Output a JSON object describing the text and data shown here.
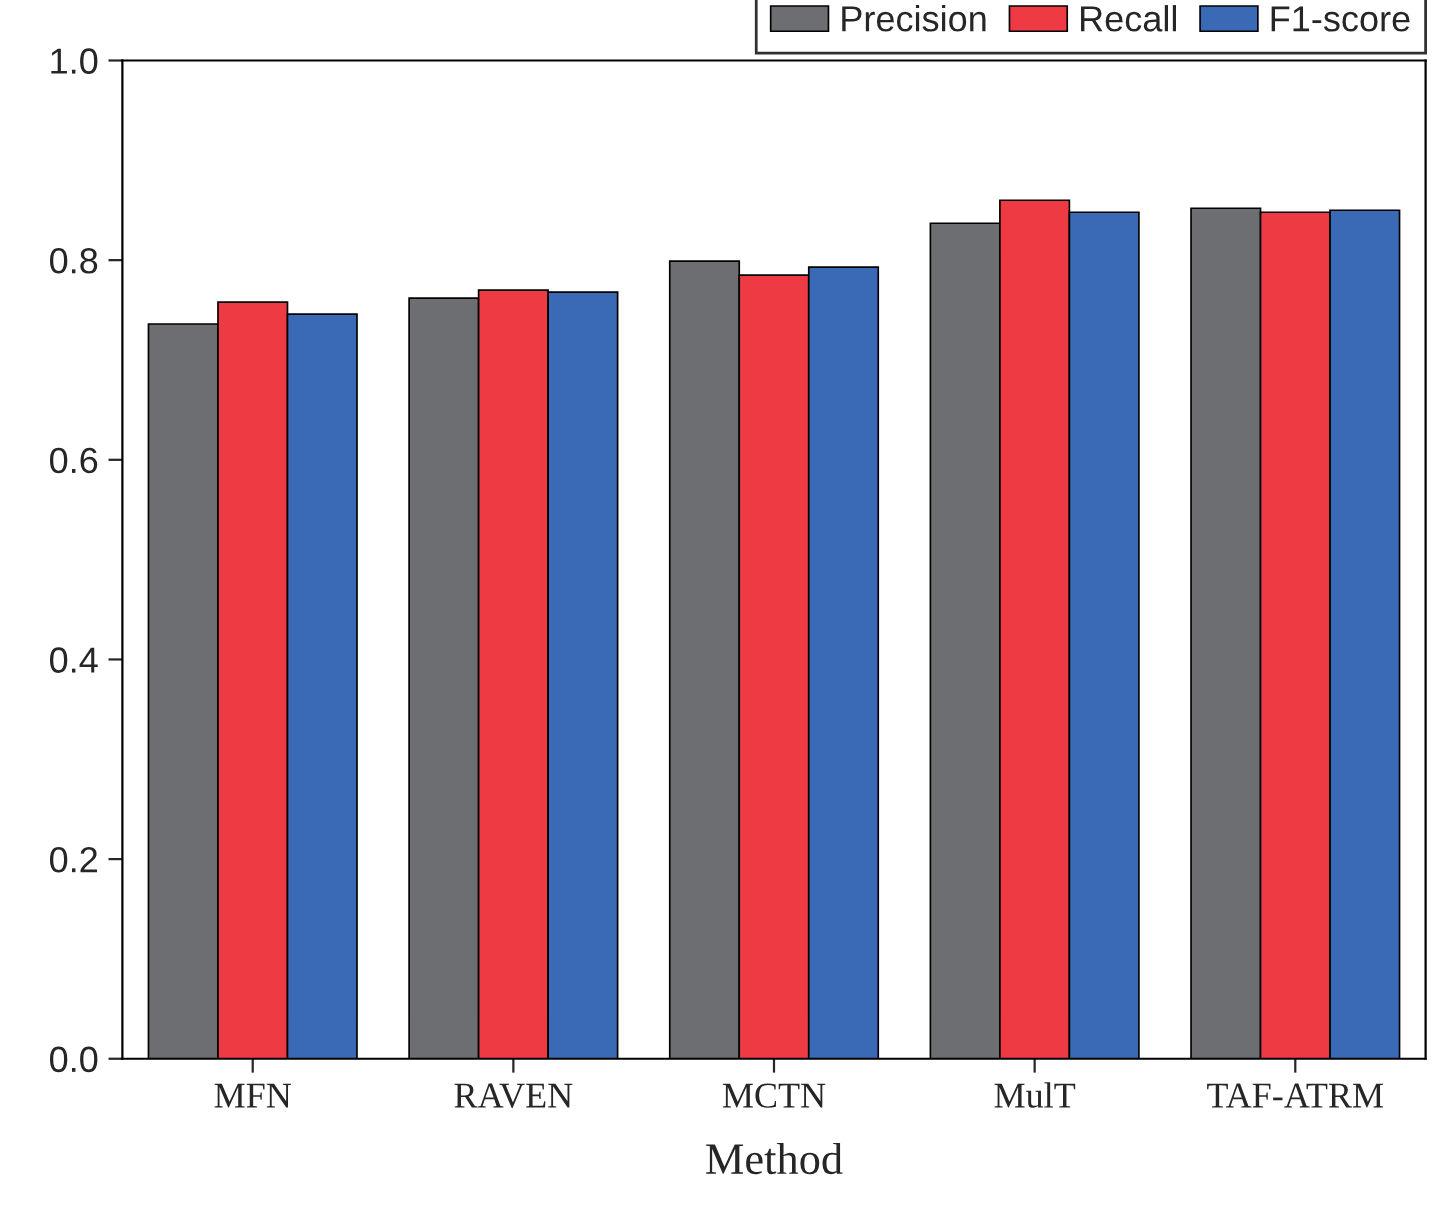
{
  "chart_data": {
    "type": "bar",
    "xlabel": "Method",
    "categories": [
      "MFN",
      "RAVEN",
      "MCTN",
      "MulT",
      "TAF-ATRM"
    ],
    "series": [
      {
        "name": "Precision",
        "color": "#6d6e71",
        "values": [
          0.736,
          0.762,
          0.799,
          0.837,
          0.852
        ]
      },
      {
        "name": "Recall",
        "color": "#ee3a43",
        "values": [
          0.758,
          0.77,
          0.785,
          0.86,
          0.848
        ]
      },
      {
        "name": "F1-score",
        "color": "#3a6ab5",
        "values": [
          0.746,
          0.768,
          0.793,
          0.848,
          0.85
        ]
      }
    ],
    "ylim": [
      0,
      1.0
    ],
    "yticks": [
      "0.0",
      0.2,
      0.4,
      0.6,
      0.8,
      "1.0"
    ],
    "grid": false,
    "legend": "top right"
  }
}
